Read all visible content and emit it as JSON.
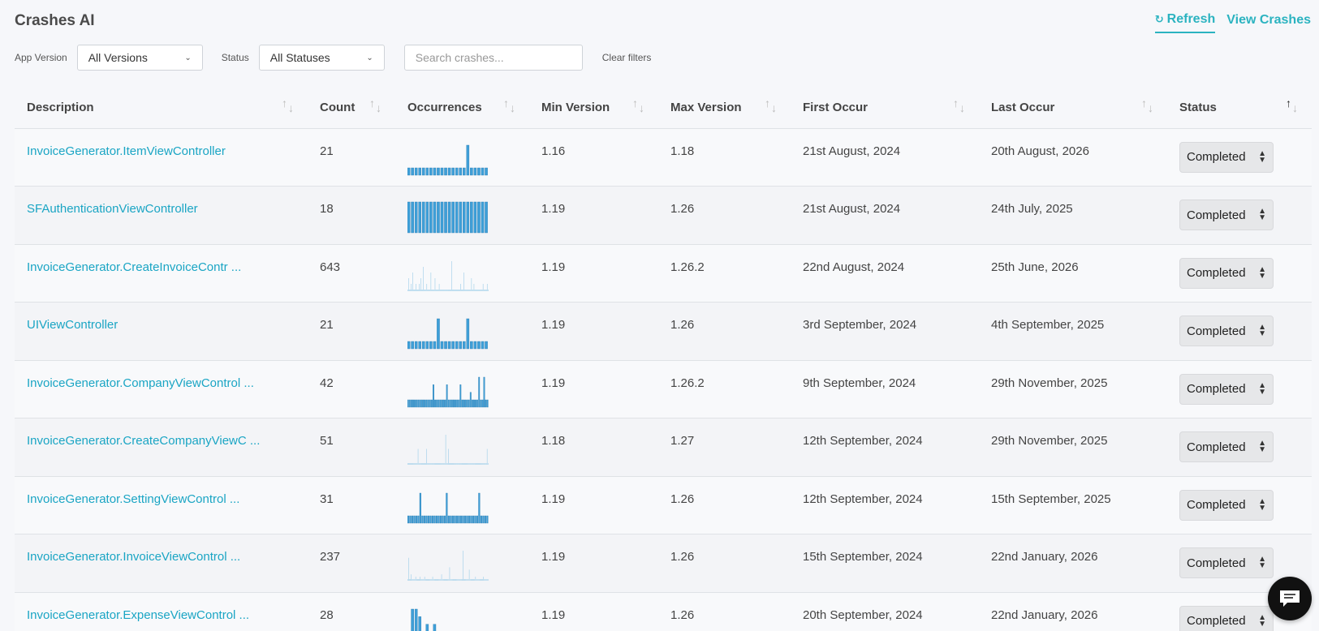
{
  "header": {
    "title": "Crashes AI",
    "refresh_label": "Refresh",
    "view_label": "View Crashes"
  },
  "filters": {
    "version_label": "App Version",
    "version_value": "All Versions",
    "status_label": "Status",
    "status_value": "All Statuses",
    "search_placeholder": "Search crashes...",
    "clear_label": "Clear filters"
  },
  "columns": [
    "Description",
    "Count",
    "Occurrences",
    "Min Version",
    "Max Version",
    "First Occur",
    "Last Occur",
    "Status"
  ],
  "rows": [
    {
      "description": "InvoiceGenerator.ItemViewController",
      "count": "21",
      "min": "1.16",
      "max": "1.18",
      "first": "21st August, 2024",
      "last": "20th August, 2026",
      "status": "Completed",
      "spark": [
        1,
        1,
        1,
        1,
        1,
        1,
        1,
        1,
        1,
        1,
        1,
        1,
        1,
        1,
        1,
        1,
        3,
        1,
        1,
        1,
        1,
        1
      ]
    },
    {
      "description": "SFAuthenticationViewController",
      "count": "18",
      "min": "1.19",
      "max": "1.26",
      "first": "21st August, 2024",
      "last": "24th July, 2025",
      "status": "Completed",
      "spark": [
        1,
        1,
        1,
        1,
        1,
        1,
        1,
        1,
        1,
        1,
        1,
        1,
        1,
        1,
        1,
        1,
        1,
        1,
        1,
        1,
        1,
        1
      ]
    },
    {
      "description": "InvoiceGenerator.CreateInvoiceContr ...",
      "count": "643",
      "min": "1.19",
      "max": "1.26.2",
      "first": "22nd August, 2024",
      "last": "25th June, 2026",
      "status": "Completed",
      "spark": [
        1,
        3,
        1,
        1,
        2,
        1,
        4,
        1,
        1,
        1,
        2,
        1,
        1,
        1,
        2,
        1,
        3,
        1,
        1,
        5,
        1,
        1,
        1,
        2,
        1,
        1,
        1,
        1,
        4,
        1,
        1,
        1,
        1,
        3,
        1,
        1,
        1,
        1,
        2,
        1,
        1,
        1,
        1,
        1,
        1,
        1,
        1,
        1,
        1,
        1,
        1,
        1,
        1,
        6,
        1,
        1,
        1,
        1,
        1,
        1,
        1,
        1,
        1,
        1,
        2,
        1,
        1,
        1,
        4,
        1,
        1,
        1,
        1,
        1,
        1,
        1,
        1,
        3,
        1,
        1,
        2,
        1,
        1,
        1,
        1,
        1,
        1,
        1,
        1,
        1,
        1,
        2,
        1,
        1,
        1,
        1,
        2,
        1
      ]
    },
    {
      "description": "UIViewController",
      "count": "21",
      "min": "1.19",
      "max": "1.26",
      "first": "3rd September, 2024",
      "last": "4th September, 2025",
      "status": "Completed",
      "spark": [
        1,
        1,
        1,
        1,
        1,
        1,
        1,
        1,
        2,
        1,
        1,
        1,
        1,
        1,
        1,
        1,
        2,
        1,
        1,
        1,
        1,
        1
      ]
    },
    {
      "description": "InvoiceGenerator.CompanyViewControl ...",
      "count": "42",
      "min": "1.19",
      "max": "1.26.2",
      "first": "9th September, 2024",
      "last": "29th November, 2025",
      "status": "Completed",
      "spark": [
        1,
        1,
        1,
        1,
        1,
        1,
        1,
        1,
        1,
        1,
        1,
        1,
        1,
        1,
        1,
        3,
        1,
        1,
        1,
        1,
        1,
        1,
        1,
        3,
        1,
        1,
        1,
        1,
        1,
        1,
        1,
        3,
        1,
        1,
        1,
        1,
        1,
        2,
        1,
        1,
        1,
        1,
        4,
        1,
        1,
        4,
        1,
        1
      ]
    },
    {
      "description": "InvoiceGenerator.CreateCompanyViewC ...",
      "count": "51",
      "min": "1.18",
      "max": "1.27",
      "first": "12th September, 2024",
      "last": "29th November, 2025",
      "status": "Completed",
      "spark": [
        1,
        1,
        1,
        1,
        1,
        1,
        1,
        1,
        1,
        1,
        1,
        1,
        2,
        1,
        1,
        1,
        1,
        1,
        1,
        1,
        1,
        1,
        2,
        1,
        1,
        1,
        1,
        1,
        1,
        1,
        1,
        1,
        1,
        1,
        1,
        1,
        1,
        1,
        1,
        1,
        1,
        1,
        1,
        1,
        3,
        1,
        1,
        2,
        1,
        1,
        1,
        1,
        1,
        1,
        1,
        1,
        1,
        1,
        1,
        1,
        1,
        1,
        1,
        1,
        1,
        1,
        1,
        1,
        1,
        1,
        1,
        1,
        1,
        1,
        1,
        1,
        1,
        1,
        1,
        1,
        1,
        1,
        1,
        1,
        1,
        1,
        1,
        1,
        1,
        1,
        1,
        1,
        2,
        1
      ]
    },
    {
      "description": "InvoiceGenerator.SettingViewControl ...",
      "count": "31",
      "min": "1.19",
      "max": "1.26",
      "first": "12th September, 2024",
      "last": "15th September, 2025",
      "status": "Completed",
      "spark": [
        1,
        1,
        1,
        1,
        1,
        1,
        2,
        1,
        1,
        1,
        1,
        1,
        1,
        1,
        1,
        1,
        1,
        1,
        1,
        2,
        1,
        1,
        1,
        1,
        1,
        1,
        1,
        1,
        1,
        1,
        1,
        1,
        1,
        1,
        1,
        2,
        1,
        1,
        1,
        1
      ]
    },
    {
      "description": "InvoiceGenerator.InvoiceViewControl ...",
      "count": "237",
      "min": "1.19",
      "max": "1.26",
      "first": "15th September, 2024",
      "last": "22nd January, 2026",
      "status": "Completed",
      "spark": [
        1,
        10,
        1,
        1,
        3,
        1,
        1,
        1,
        1,
        2,
        1,
        1,
        1,
        1,
        2,
        1,
        1,
        1,
        1,
        2,
        1,
        1,
        1,
        1,
        1,
        1,
        1,
        1,
        2,
        1,
        1,
        1,
        1,
        1,
        1,
        1,
        1,
        1,
        3,
        1,
        1,
        1,
        1,
        1,
        1,
        1,
        1,
        6,
        1,
        1,
        1,
        1,
        1,
        1,
        1,
        1,
        1,
        1,
        1,
        1,
        1,
        1,
        13,
        1,
        1,
        1,
        1,
        1,
        1,
        5,
        1,
        1,
        1,
        1,
        1,
        1,
        2,
        1,
        1,
        1,
        1,
        1,
        1,
        1,
        1,
        2,
        1,
        1,
        1,
        1,
        1
      ]
    },
    {
      "description": "InvoiceGenerator.ExpenseViewControl ...",
      "count": "28",
      "min": "1.19",
      "max": "1.26",
      "first": "20th September, 2024",
      "last": "22nd January, 2026",
      "status": "Completed",
      "spark": [
        1,
        4,
        4,
        3,
        1,
        2,
        1,
        2,
        1,
        1,
        1,
        1,
        1,
        1,
        1,
        1,
        1,
        1,
        1,
        1,
        1,
        1
      ]
    }
  ],
  "colors": {
    "accent": "#2bb3c0",
    "link": "#1aa5c4",
    "bar": "#3e9fd8",
    "bar_light": "#9bcde8"
  }
}
